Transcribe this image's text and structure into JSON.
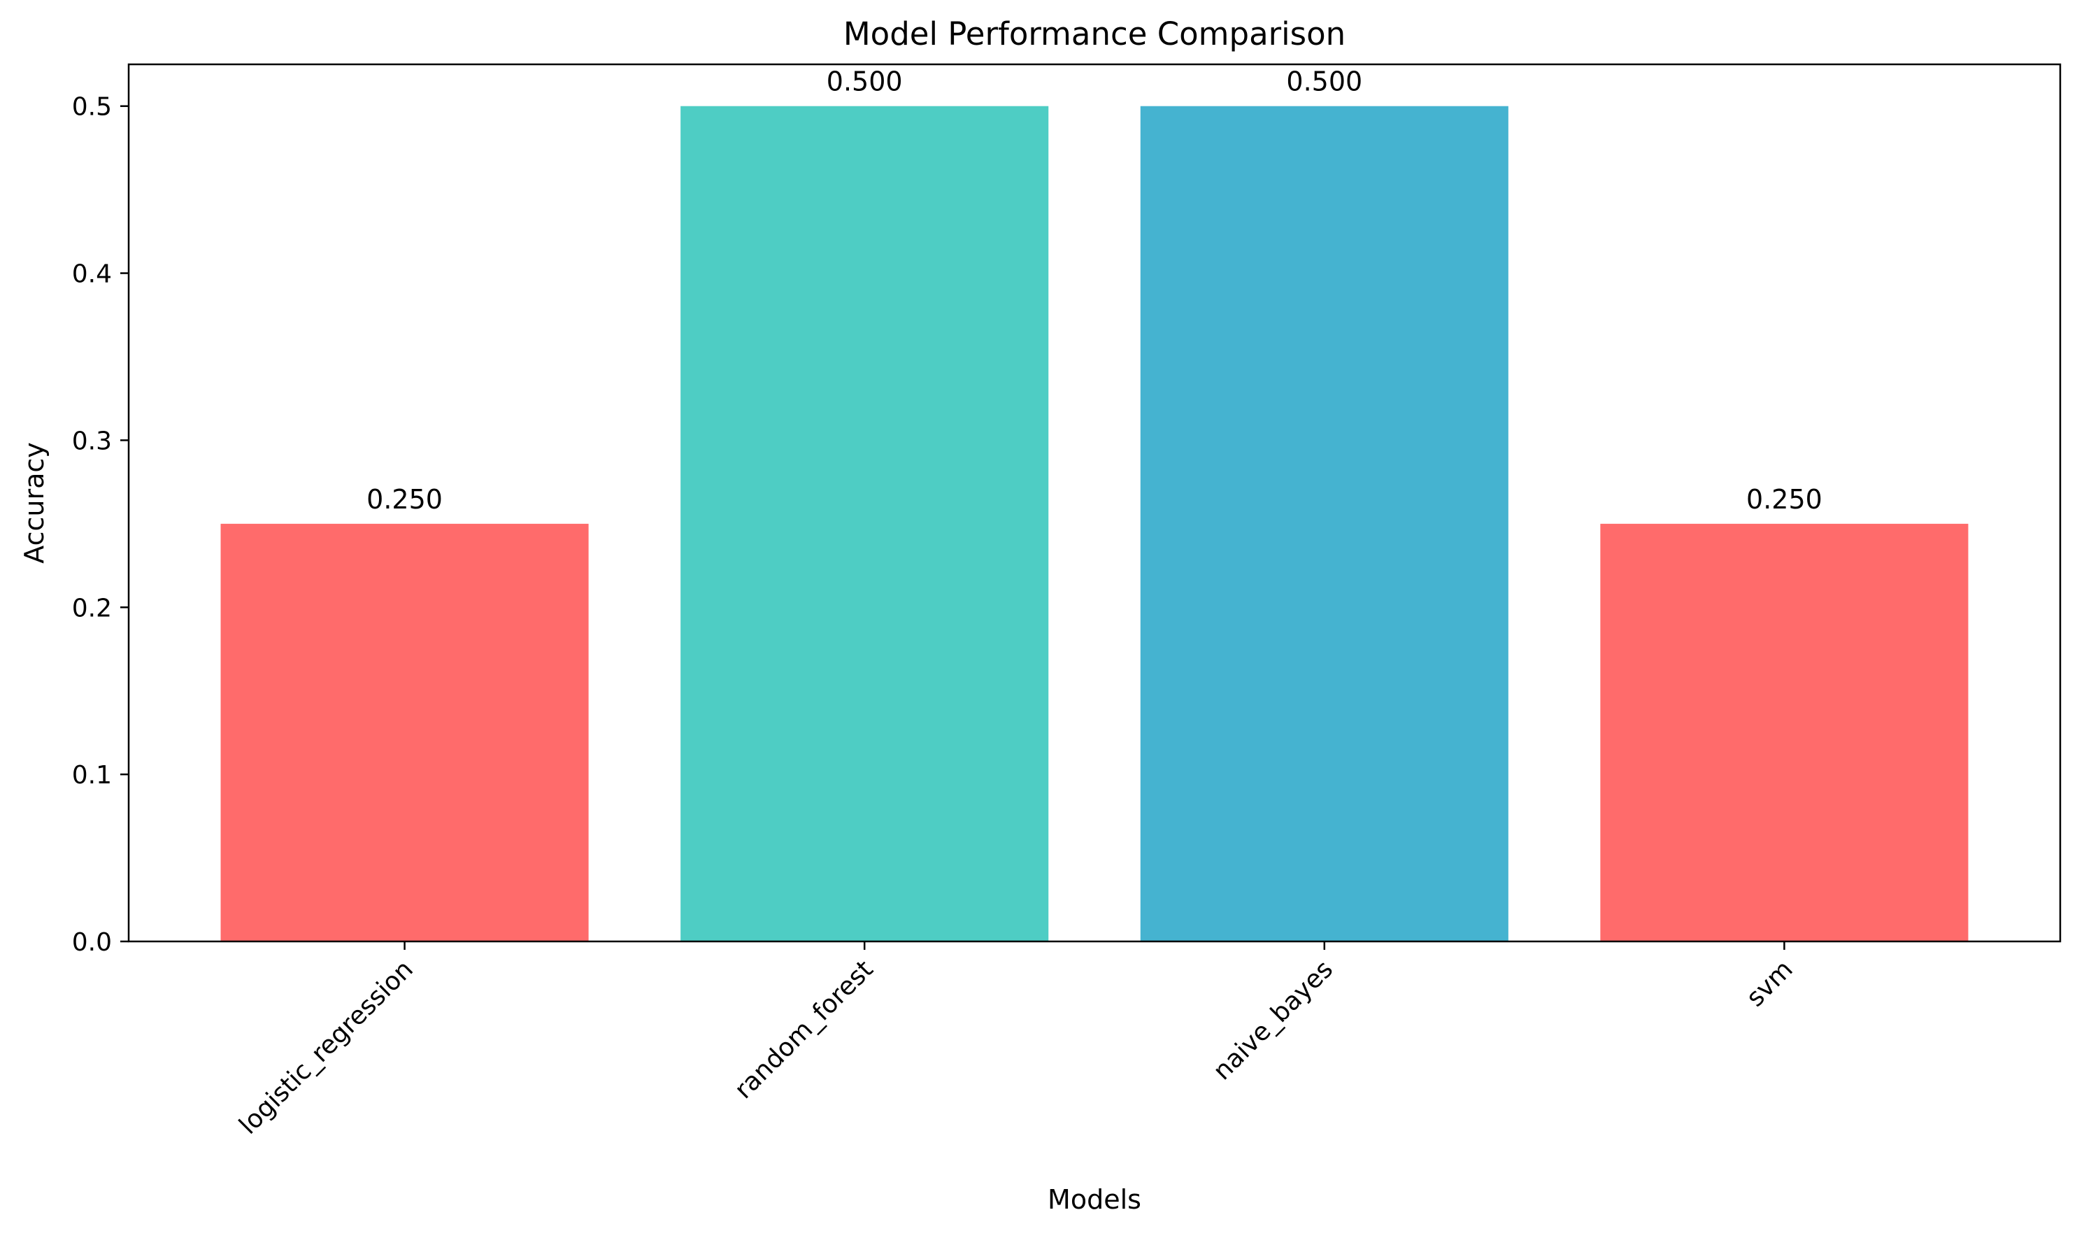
{
  "chart_data": {
    "type": "bar",
    "title": "Model Performance Comparison",
    "xlabel": "Models",
    "ylabel": "Accuracy",
    "categories": [
      "logistic_regression",
      "random_forest",
      "naive_bayes",
      "svm"
    ],
    "values": [
      0.25,
      0.5,
      0.5,
      0.25
    ],
    "value_labels": [
      "0.250",
      "0.500",
      "0.500",
      "0.250"
    ],
    "bar_colors": [
      "#FF6B6B",
      "#4ECDC4",
      "#45B3D0",
      "#FF6B6B"
    ],
    "ylim": [
      0,
      0.525
    ],
    "yticks": [
      0.0,
      0.1,
      0.2,
      0.3,
      0.4,
      0.5
    ],
    "ytick_labels": [
      "0.0",
      "0.1",
      "0.2",
      "0.3",
      "0.4",
      "0.5"
    ],
    "xtick_rotation_deg": 45,
    "grid": false,
    "legend": "none"
  }
}
